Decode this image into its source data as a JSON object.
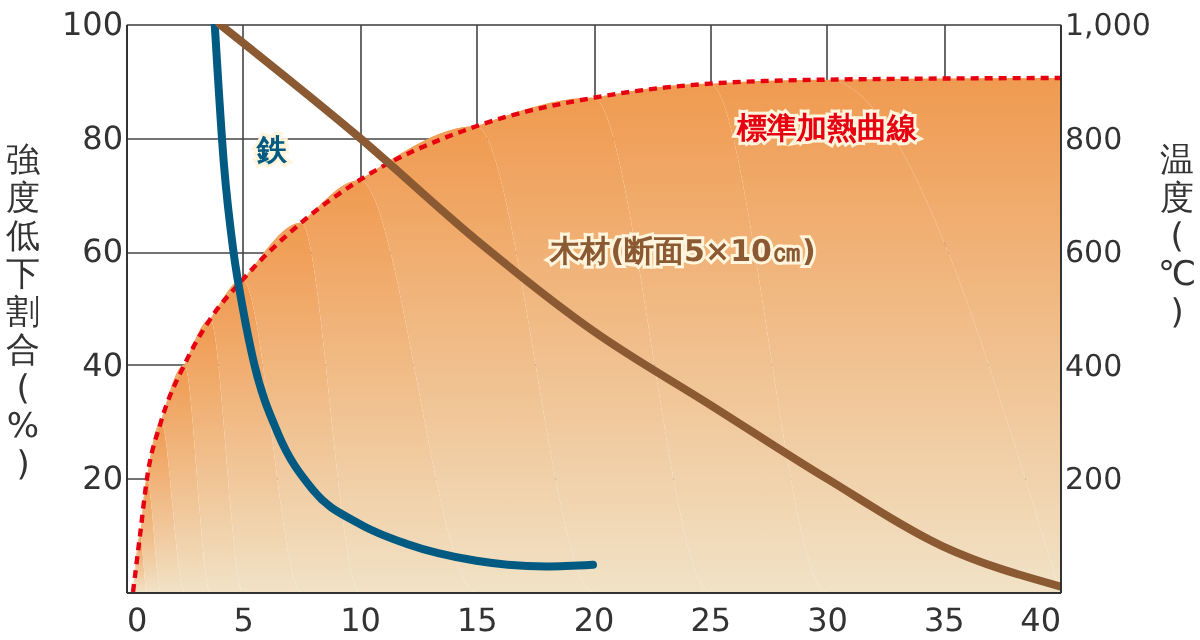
{
  "chart_data": {
    "type": "line",
    "ylabel": "強度低下割合(%)",
    "y2label": "温度(℃)",
    "xlim": [
      0,
      40
    ],
    "xticks": [
      0,
      5,
      10,
      15,
      20,
      25,
      30,
      35,
      40
    ],
    "ylim": [
      0,
      100
    ],
    "yticks": [
      20,
      40,
      60,
      80,
      100
    ],
    "y2lim": [
      0,
      1000
    ],
    "y2ticks": [
      200,
      400,
      600,
      800,
      {
        "value": 1000,
        "label": "1,000"
      }
    ],
    "grid": true,
    "legend": false,
    "marker": "none",
    "series": [
      {
        "name": "標準加熱曲線",
        "type": "area",
        "axis": "y2",
        "color": "#e60012",
        "line_style": "dashed",
        "x": [
          0.3,
          0.6,
          0.9,
          1.5,
          2.5,
          3.6,
          5,
          7.5,
          10,
          15,
          20,
          25,
          30,
          40
        ],
        "values": [
          0,
          100,
          200,
          300,
          400,
          480,
          550,
          650,
          725,
          820,
          870,
          895,
          902,
          905
        ]
      },
      {
        "name": "鉄",
        "color": "#005a82",
        "line_style": "solid",
        "x": [
          3.8,
          4.2,
          4.6,
          5,
          5.5,
          6.5,
          8,
          10,
          12,
          15,
          18,
          20
        ],
        "values": [
          100,
          75,
          60,
          50,
          40,
          28,
          18,
          12,
          8.5,
          5.5,
          4.5,
          4.8
        ]
      },
      {
        "name": "木材(断面5×10㎝)",
        "color": "#8c5a32",
        "line_style": "solid",
        "x": [
          4,
          10,
          15,
          20,
          25,
          30,
          35,
          40
        ],
        "values": [
          100,
          80,
          62,
          46,
          33,
          20,
          8,
          1
        ]
      }
    ]
  }
}
